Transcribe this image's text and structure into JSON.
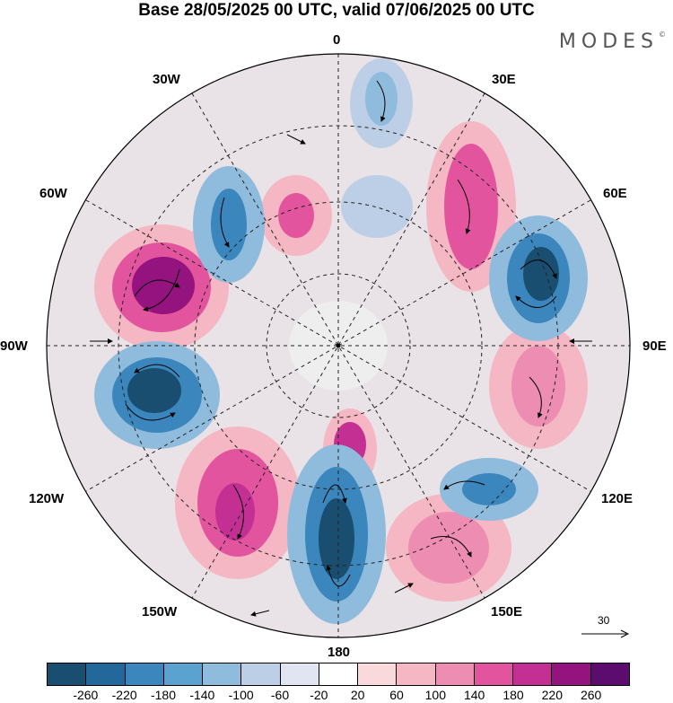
{
  "title": "Base 28/05/2025 00 UTC, valid 07/06/2025 00 UTC",
  "brand": "MODES",
  "brand_mark": "©",
  "longitude_labels": {
    "lon_0": "0",
    "lon_30e": "30E",
    "lon_60e": "60E",
    "lon_90e": "90E",
    "lon_120e": "120E",
    "lon_150e": "150E",
    "lon_180": "180",
    "lon_150w": "150W",
    "lon_120w": "120W",
    "lon_90w": "90W",
    "lon_60w": "60W",
    "lon_30w": "30W"
  },
  "reference_vector": "30",
  "colorbar": {
    "colors": [
      "#1a4e70",
      "#22689a",
      "#3a86bd",
      "#5aa2d0",
      "#8fbcdd",
      "#bccfe7",
      "#e1e5f1",
      "#ffffff",
      "#f9d9dc",
      "#f5b7c3",
      "#ee8db2",
      "#e2559e",
      "#c42f94",
      "#94137f",
      "#5b0c6e"
    ],
    "tick_labels": [
      "-260",
      "-220",
      "-180",
      "-140",
      "-100",
      "-60",
      "-20",
      "20",
      "60",
      "100",
      "140",
      "180",
      "220",
      "260"
    ]
  },
  "colors": {
    "negative_strong": "#1a4e70",
    "negative_light": "#bccfe7",
    "positive_light": "#f9d9dc",
    "positive_strong": "#94137f"
  }
}
